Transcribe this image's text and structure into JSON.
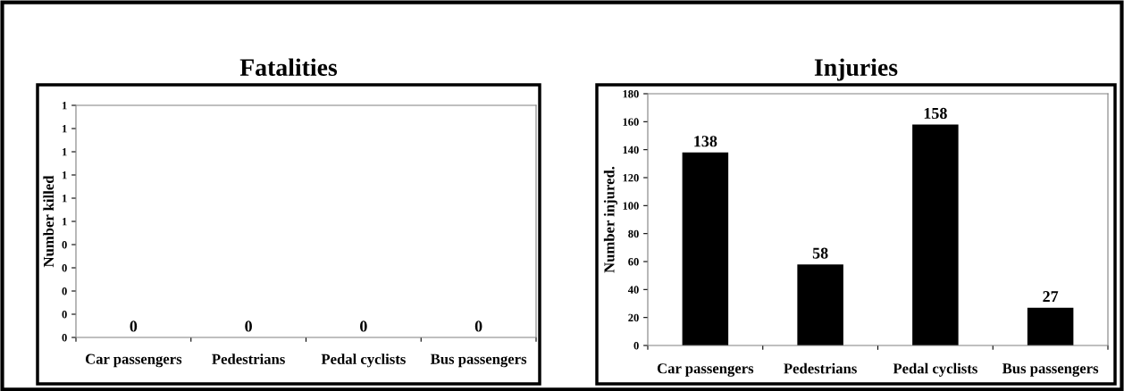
{
  "chart_data": [
    {
      "type": "bar",
      "title": "Fatalities",
      "ylabel": "Number killed",
      "categories": [
        "Car passengers",
        "Pedestrians",
        "Pedal cyclists",
        "Bus passengers"
      ],
      "values": [
        0,
        0,
        0,
        0
      ],
      "color": "#000000",
      "data_labels": true,
      "ylim": [
        0,
        1
      ],
      "yticks": [
        0,
        {
          "value": 0.1,
          "label": "0"
        },
        {
          "value": 0.2,
          "label": "0"
        },
        {
          "value": 0.3,
          "label": "0"
        },
        {
          "value": 0.4,
          "label": "0"
        },
        {
          "value": 0.5,
          "label": "1"
        },
        {
          "value": 0.6,
          "label": "1"
        },
        {
          "value": 0.7,
          "label": "1"
        },
        {
          "value": 0.8,
          "label": "1"
        },
        {
          "value": 0.9,
          "label": "1"
        },
        1
      ],
      "grid": false
    },
    {
      "type": "bar",
      "title": "Injuries",
      "ylabel": "Number injured.",
      "categories": [
        "Car passengers",
        "Pedestrians",
        "Pedal cyclists",
        "Bus passengers"
      ],
      "values": [
        138,
        58,
        158,
        27
      ],
      "color": "#000000",
      "data_labels": true,
      "ylim": [
        0,
        180
      ],
      "yticks": [
        0,
        20,
        40,
        60,
        80,
        100,
        120,
        140,
        160,
        180
      ],
      "grid": false
    }
  ]
}
